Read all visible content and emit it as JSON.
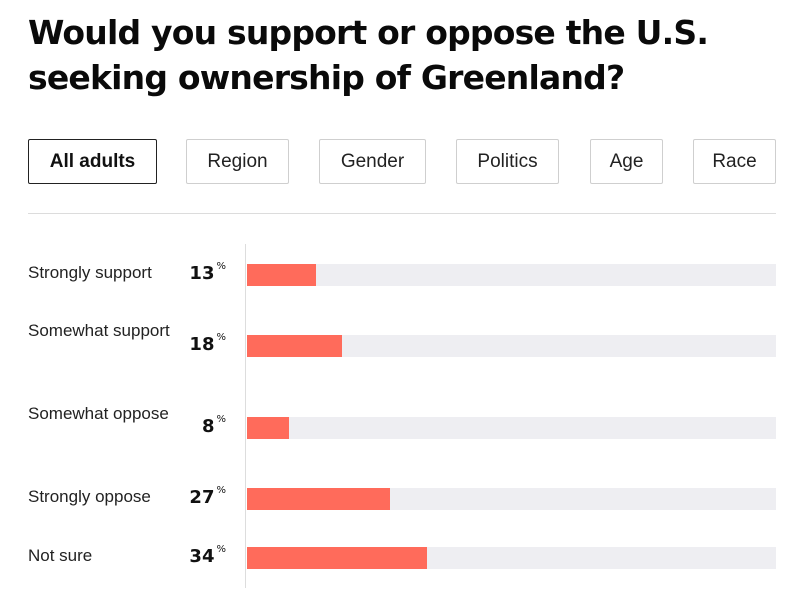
{
  "title": "Would you support or oppose the U.S. seeking ownership of Greenland?",
  "filters": [
    {
      "label": "All adults",
      "active": true
    },
    {
      "label": "Region",
      "active": false
    },
    {
      "label": "Gender",
      "active": false
    },
    {
      "label": "Politics",
      "active": false
    },
    {
      "label": "Age",
      "active": false
    },
    {
      "label": "Race",
      "active": false
    }
  ],
  "colors": {
    "bar": "#ff6b5b",
    "track": "#eeeef2"
  },
  "chart_data": {
    "type": "bar",
    "orientation": "horizontal",
    "categories": [
      "Strongly support",
      "Somewhat support",
      "Somewhat oppose",
      "Strongly oppose",
      "Not sure"
    ],
    "values": [
      13,
      18,
      8,
      27,
      34
    ],
    "value_labels": [
      "13",
      "18",
      "8",
      "27",
      "34"
    ],
    "unit": "%",
    "xlim": [
      0,
      100
    ]
  }
}
